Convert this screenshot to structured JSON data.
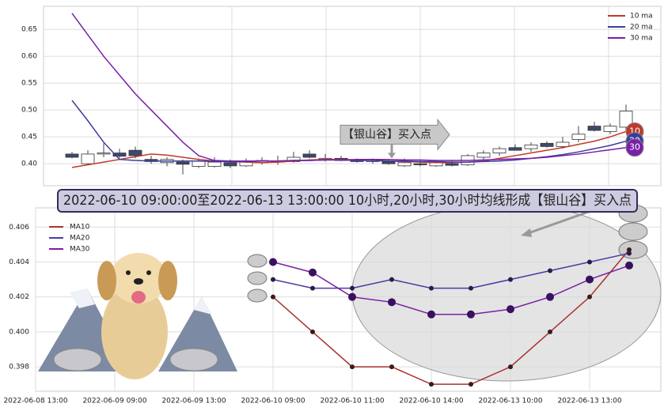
{
  "chart_data": [
    {
      "type": "candlestick",
      "x": [
        0,
        1,
        2,
        3,
        4,
        5,
        6,
        7,
        8,
        9,
        10,
        11,
        12,
        13,
        14,
        15,
        16,
        17,
        18,
        19,
        20,
        21,
        22,
        23,
        24,
        25,
        26,
        27,
        28,
        29,
        30,
        31,
        32,
        33,
        34,
        35
      ],
      "open": [
        0.418,
        0.4,
        0.418,
        0.42,
        0.425,
        0.408,
        0.402,
        0.403,
        0.395,
        0.395,
        0.402,
        0.396,
        0.402,
        0.405,
        0.404,
        0.418,
        0.408,
        0.41,
        0.406,
        0.404,
        0.404,
        0.396,
        0.4,
        0.396,
        0.4,
        0.398,
        0.412,
        0.42,
        0.43,
        0.428,
        0.438,
        0.432,
        0.445,
        0.47,
        0.46,
        0.468
      ],
      "high": [
        0.422,
        0.425,
        0.438,
        0.428,
        0.432,
        0.415,
        0.412,
        0.408,
        0.41,
        0.412,
        0.408,
        0.41,
        0.412,
        0.415,
        0.422,
        0.425,
        0.418,
        0.415,
        0.41,
        0.41,
        0.408,
        0.41,
        0.408,
        0.406,
        0.406,
        0.418,
        0.425,
        0.432,
        0.436,
        0.44,
        0.442,
        0.45,
        0.47,
        0.478,
        0.475,
        0.51
      ],
      "low": [
        0.41,
        0.398,
        0.412,
        0.41,
        0.41,
        0.4,
        0.395,
        0.38,
        0.392,
        0.393,
        0.392,
        0.394,
        0.398,
        0.398,
        0.402,
        0.41,
        0.404,
        0.405,
        0.402,
        0.4,
        0.398,
        0.394,
        0.395,
        0.394,
        0.395,
        0.396,
        0.408,
        0.415,
        0.425,
        0.422,
        0.43,
        0.428,
        0.44,
        0.46,
        0.455,
        0.462
      ],
      "close": [
        0.412,
        0.418,
        0.42,
        0.414,
        0.415,
        0.404,
        0.408,
        0.399,
        0.405,
        0.403,
        0.396,
        0.404,
        0.406,
        0.403,
        0.412,
        0.412,
        0.41,
        0.406,
        0.404,
        0.406,
        0.4,
        0.402,
        0.398,
        0.402,
        0.397,
        0.415,
        0.42,
        0.428,
        0.425,
        0.435,
        0.432,
        0.44,
        0.455,
        0.462,
        0.47,
        0.498
      ],
      "up_color": "#ffffff",
      "down_color": "#3d4a6b",
      "series": [
        {
          "name": "10 ma",
          "label": "10",
          "color": "#c0392b",
          "values": [
            0.393,
            0.398,
            0.403,
            0.408,
            0.413,
            0.418,
            0.416,
            0.412,
            0.408,
            0.405,
            0.404,
            0.403,
            0.402,
            0.403,
            0.405,
            0.407,
            0.408,
            0.408,
            0.407,
            0.406,
            0.405,
            0.404,
            0.403,
            0.402,
            0.402,
            0.403,
            0.405,
            0.41,
            0.415,
            0.42,
            0.425,
            0.43,
            0.436,
            0.442,
            0.45,
            0.46
          ]
        },
        {
          "name": "20 ma",
          "label": "20",
          "color": "#3c3c9e",
          "values": [
            0.518,
            0.48,
            0.44,
            0.408,
            0.406,
            0.405,
            0.405,
            0.405,
            0.405,
            0.404,
            0.404,
            0.404,
            0.405,
            0.405,
            0.406,
            0.406,
            0.407,
            0.407,
            0.406,
            0.406,
            0.405,
            0.405,
            0.404,
            0.404,
            0.403,
            0.403,
            0.404,
            0.405,
            0.407,
            0.41,
            0.413,
            0.417,
            0.422,
            0.428,
            0.434,
            0.442
          ]
        },
        {
          "name": "30 ma",
          "label": "30",
          "color": "#7a1fa8",
          "values": [
            0.68,
            0.64,
            0.6,
            0.565,
            0.53,
            0.5,
            0.47,
            0.44,
            0.415,
            0.406,
            0.405,
            0.405,
            0.405,
            0.405,
            0.406,
            0.406,
            0.407,
            0.407,
            0.408,
            0.408,
            0.408,
            0.407,
            0.407,
            0.406,
            0.406,
            0.406,
            0.407,
            0.408,
            0.409,
            0.41,
            0.412,
            0.415,
            0.418,
            0.422,
            0.426,
            0.43
          ]
        }
      ],
      "xlim": [
        -1.8,
        37.2
      ],
      "ylim": [
        0.359,
        0.693
      ],
      "yticks": [
        {
          "value": 0.4,
          "label": "0.40"
        },
        0.45,
        {
          "value": 0.5,
          "label": "0.50"
        },
        0.55,
        {
          "value": 0.6,
          "label": "0.60"
        },
        0.65
      ],
      "grid": true,
      "legend": "upper right",
      "annotation": {
        "text": "【银山谷】买入点",
        "x": 20.2,
        "y": 0.41
      }
    },
    {
      "type": "line",
      "x": [
        6,
        7,
        8,
        9,
        10,
        11,
        12,
        13,
        14,
        15
      ],
      "series": [
        {
          "name": "MA10",
          "color": "#a83232",
          "marker_color": "#3a1a1a",
          "marker_size": 3,
          "values": [
            0.402,
            0.4,
            0.398,
            0.398,
            0.397,
            0.397,
            0.398,
            0.4,
            0.402,
            0.4047
          ]
        },
        {
          "name": "MA20",
          "color": "#4a3aa8",
          "marker_color": "#2b1b4a",
          "marker_size": 3,
          "values": [
            0.403,
            0.4025,
            0.4025,
            0.403,
            0.4025,
            0.4025,
            0.403,
            0.4035,
            0.404,
            0.4045
          ]
        },
        {
          "name": "MA30",
          "color": "#7b1fa2",
          "marker_color": "#3a1060",
          "marker_size": 5,
          "values": [
            0.404,
            0.4034,
            0.402,
            0.4017,
            0.401,
            0.401,
            0.4013,
            0.402,
            0.403,
            0.4038
          ]
        }
      ],
      "xlim": [
        0,
        15.8
      ],
      "xticks": [
        {
          "value": 0,
          "label": "2022-06-08 13:00"
        },
        {
          "value": 2,
          "label": "2022-06-09 09:00"
        },
        {
          "value": 4,
          "label": "2022-06-09 13:00"
        },
        {
          "value": 6,
          "label": "2022-06-10 09:00"
        },
        {
          "value": 8,
          "label": "2022-06-10 11:00"
        },
        {
          "value": 10,
          "label": "2022-06-10 14:00"
        },
        {
          "value": 12,
          "label": "2022-06-13 10:00"
        },
        {
          "value": 14,
          "label": "2022-06-13 13:00"
        }
      ],
      "ylim": [
        0.3966,
        0.4071
      ],
      "yticks": [
        0.398,
        {
          "value": 0.4,
          "label": "0.400"
        },
        0.402,
        0.404,
        0.406
      ],
      "grid": true,
      "legend": "upper left"
    }
  ],
  "banner": "2022-06-10 09:00:00至2022-06-13 13:00:00 10小时,20小时,30小时均线形成【银山谷】买入点"
}
